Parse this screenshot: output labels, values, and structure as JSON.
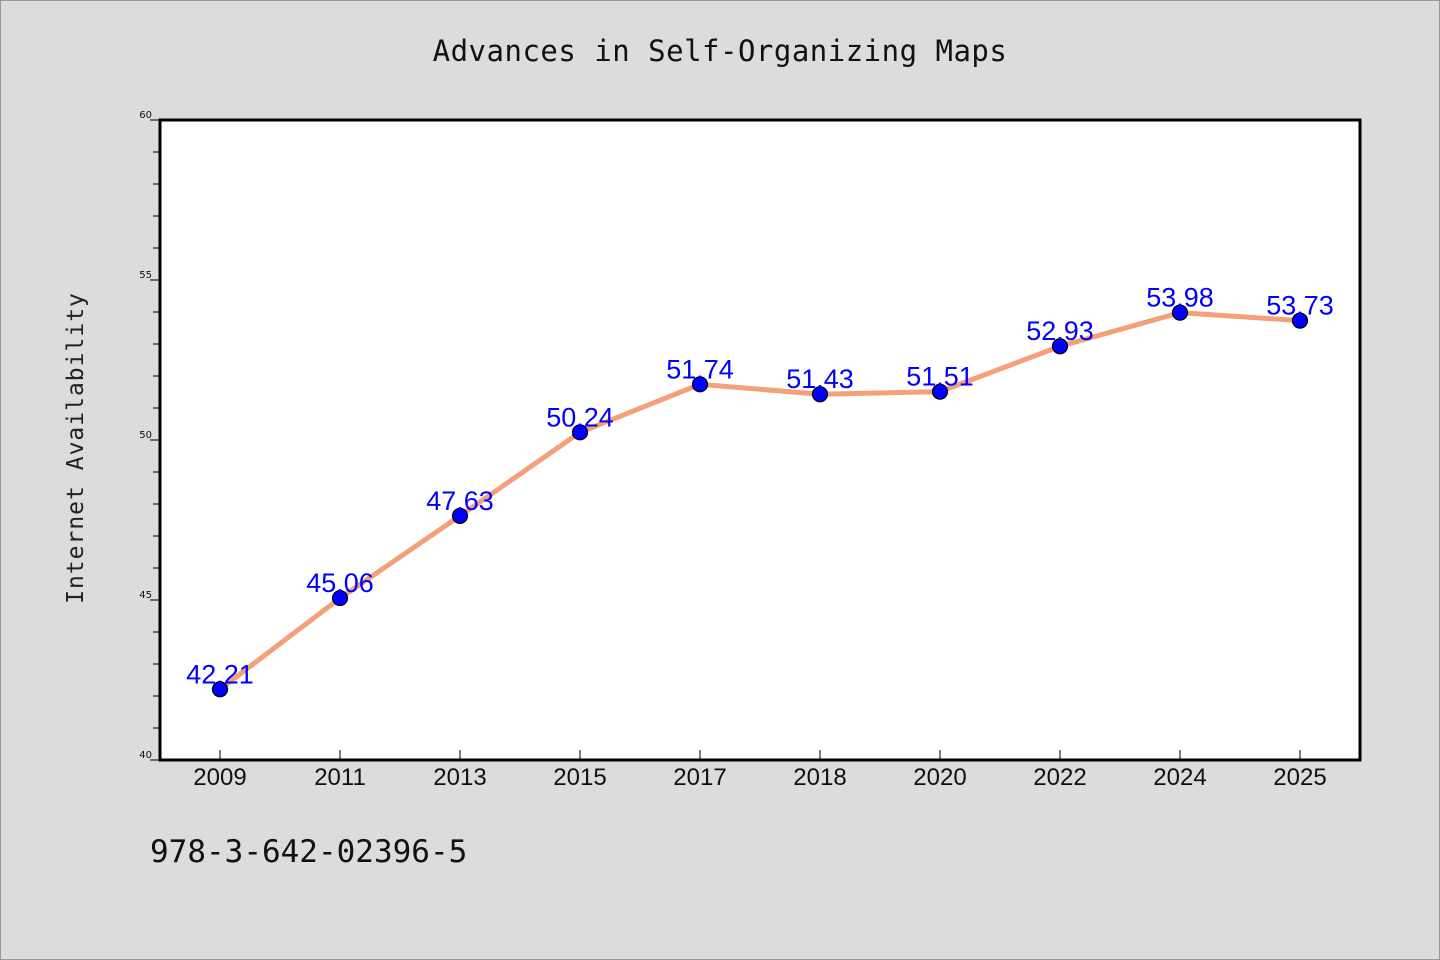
{
  "chart_data": {
    "type": "line",
    "title": "Advances in Self-Organizing Maps",
    "xlabel": "",
    "ylabel": "Internet Availability",
    "categories": [
      "2009",
      "2011",
      "2013",
      "2015",
      "2017",
      "2018",
      "2020",
      "2022",
      "2024",
      "2025"
    ],
    "series": [
      {
        "values": [
          42.21,
          45.06,
          47.63,
          50.24,
          51.74,
          51.43,
          51.51,
          52.93,
          53.98,
          53.73
        ],
        "labels": [
          "42.21",
          "45.06",
          "47.63",
          "50.24",
          "51.74",
          "51.43",
          "51.51",
          "52.93",
          "53.98",
          "53.73"
        ],
        "line_color": "#f4a07a",
        "marker_color": "#0000ff"
      }
    ],
    "ylim": [
      40,
      60
    ],
    "yticks": [
      "40",
      "45",
      "50",
      "55",
      "60"
    ],
    "grid": false,
    "legend": "none"
  },
  "footnote": "978-3-642-02396-5",
  "colors": {
    "background": "#dcdcdc",
    "plot_area": "#ffffff",
    "line": "#f4a07a",
    "marker": "#0000ff",
    "label": "#0000ff"
  }
}
